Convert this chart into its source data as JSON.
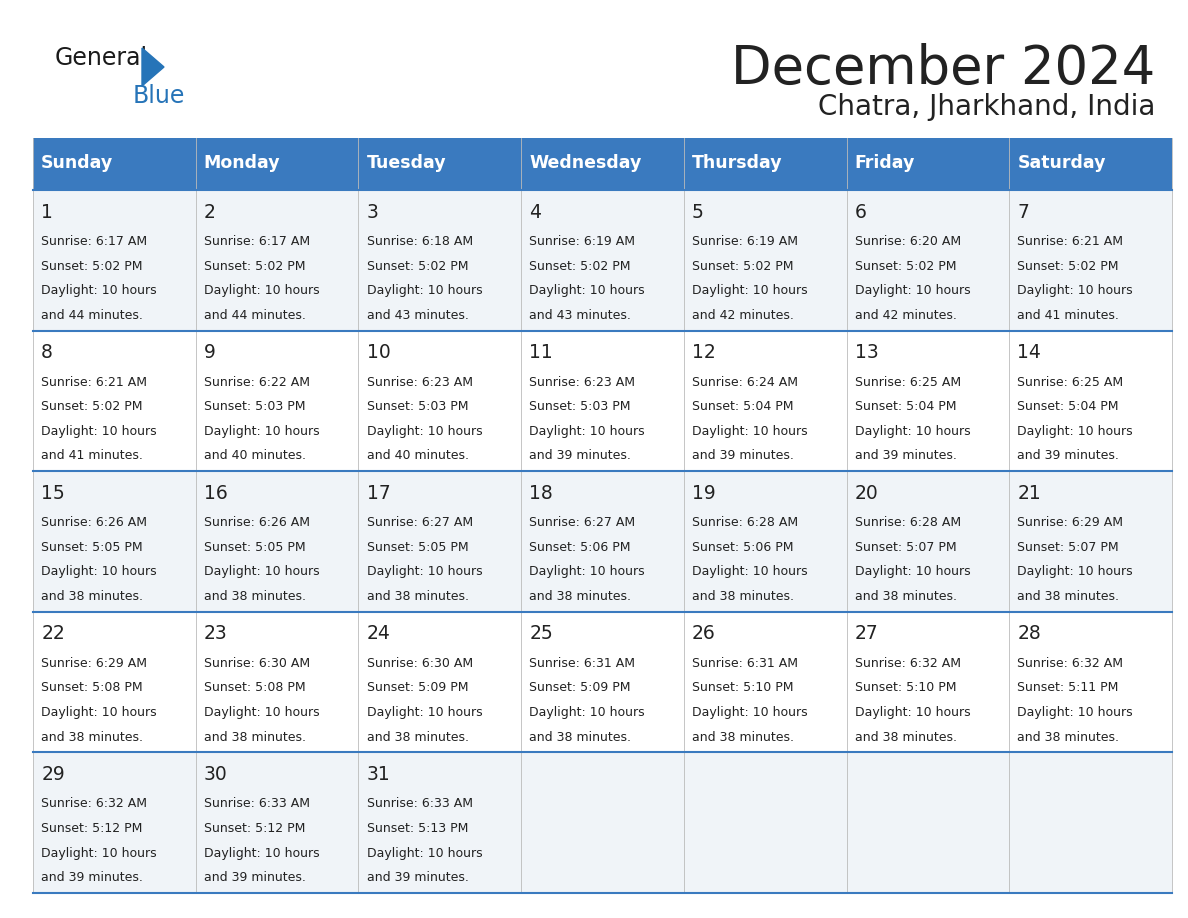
{
  "title": "December 2024",
  "subtitle": "Chatra, Jharkhand, India",
  "header_color": "#3a7abf",
  "header_text_color": "#ffffff",
  "row_colors": [
    "#f0f4f8",
    "#ffffff"
  ],
  "text_color": "#222222",
  "border_color": "#3a7abf",
  "days_of_week": [
    "Sunday",
    "Monday",
    "Tuesday",
    "Wednesday",
    "Thursday",
    "Friday",
    "Saturday"
  ],
  "calendar": [
    [
      {
        "day": 1,
        "sunrise": "6:17 AM",
        "sunset": "5:02 PM",
        "daylight_line1": "Daylight: 10 hours",
        "daylight_line2": "and 44 minutes."
      },
      {
        "day": 2,
        "sunrise": "6:17 AM",
        "sunset": "5:02 PM",
        "daylight_line1": "Daylight: 10 hours",
        "daylight_line2": "and 44 minutes."
      },
      {
        "day": 3,
        "sunrise": "6:18 AM",
        "sunset": "5:02 PM",
        "daylight_line1": "Daylight: 10 hours",
        "daylight_line2": "and 43 minutes."
      },
      {
        "day": 4,
        "sunrise": "6:19 AM",
        "sunset": "5:02 PM",
        "daylight_line1": "Daylight: 10 hours",
        "daylight_line2": "and 43 minutes."
      },
      {
        "day": 5,
        "sunrise": "6:19 AM",
        "sunset": "5:02 PM",
        "daylight_line1": "Daylight: 10 hours",
        "daylight_line2": "and 42 minutes."
      },
      {
        "day": 6,
        "sunrise": "6:20 AM",
        "sunset": "5:02 PM",
        "daylight_line1": "Daylight: 10 hours",
        "daylight_line2": "and 42 minutes."
      },
      {
        "day": 7,
        "sunrise": "6:21 AM",
        "sunset": "5:02 PM",
        "daylight_line1": "Daylight: 10 hours",
        "daylight_line2": "and 41 minutes."
      }
    ],
    [
      {
        "day": 8,
        "sunrise": "6:21 AM",
        "sunset": "5:02 PM",
        "daylight_line1": "Daylight: 10 hours",
        "daylight_line2": "and 41 minutes."
      },
      {
        "day": 9,
        "sunrise": "6:22 AM",
        "sunset": "5:03 PM",
        "daylight_line1": "Daylight: 10 hours",
        "daylight_line2": "and 40 minutes."
      },
      {
        "day": 10,
        "sunrise": "6:23 AM",
        "sunset": "5:03 PM",
        "daylight_line1": "Daylight: 10 hours",
        "daylight_line2": "and 40 minutes."
      },
      {
        "day": 11,
        "sunrise": "6:23 AM",
        "sunset": "5:03 PM",
        "daylight_line1": "Daylight: 10 hours",
        "daylight_line2": "and 39 minutes."
      },
      {
        "day": 12,
        "sunrise": "6:24 AM",
        "sunset": "5:04 PM",
        "daylight_line1": "Daylight: 10 hours",
        "daylight_line2": "and 39 minutes."
      },
      {
        "day": 13,
        "sunrise": "6:25 AM",
        "sunset": "5:04 PM",
        "daylight_line1": "Daylight: 10 hours",
        "daylight_line2": "and 39 minutes."
      },
      {
        "day": 14,
        "sunrise": "6:25 AM",
        "sunset": "5:04 PM",
        "daylight_line1": "Daylight: 10 hours",
        "daylight_line2": "and 39 minutes."
      }
    ],
    [
      {
        "day": 15,
        "sunrise": "6:26 AM",
        "sunset": "5:05 PM",
        "daylight_line1": "Daylight: 10 hours",
        "daylight_line2": "and 38 minutes."
      },
      {
        "day": 16,
        "sunrise": "6:26 AM",
        "sunset": "5:05 PM",
        "daylight_line1": "Daylight: 10 hours",
        "daylight_line2": "and 38 minutes."
      },
      {
        "day": 17,
        "sunrise": "6:27 AM",
        "sunset": "5:05 PM",
        "daylight_line1": "Daylight: 10 hours",
        "daylight_line2": "and 38 minutes."
      },
      {
        "day": 18,
        "sunrise": "6:27 AM",
        "sunset": "5:06 PM",
        "daylight_line1": "Daylight: 10 hours",
        "daylight_line2": "and 38 minutes."
      },
      {
        "day": 19,
        "sunrise": "6:28 AM",
        "sunset": "5:06 PM",
        "daylight_line1": "Daylight: 10 hours",
        "daylight_line2": "and 38 minutes."
      },
      {
        "day": 20,
        "sunrise": "6:28 AM",
        "sunset": "5:07 PM",
        "daylight_line1": "Daylight: 10 hours",
        "daylight_line2": "and 38 minutes."
      },
      {
        "day": 21,
        "sunrise": "6:29 AM",
        "sunset": "5:07 PM",
        "daylight_line1": "Daylight: 10 hours",
        "daylight_line2": "and 38 minutes."
      }
    ],
    [
      {
        "day": 22,
        "sunrise": "6:29 AM",
        "sunset": "5:08 PM",
        "daylight_line1": "Daylight: 10 hours",
        "daylight_line2": "and 38 minutes."
      },
      {
        "day": 23,
        "sunrise": "6:30 AM",
        "sunset": "5:08 PM",
        "daylight_line1": "Daylight: 10 hours",
        "daylight_line2": "and 38 minutes."
      },
      {
        "day": 24,
        "sunrise": "6:30 AM",
        "sunset": "5:09 PM",
        "daylight_line1": "Daylight: 10 hours",
        "daylight_line2": "and 38 minutes."
      },
      {
        "day": 25,
        "sunrise": "6:31 AM",
        "sunset": "5:09 PM",
        "daylight_line1": "Daylight: 10 hours",
        "daylight_line2": "and 38 minutes."
      },
      {
        "day": 26,
        "sunrise": "6:31 AM",
        "sunset": "5:10 PM",
        "daylight_line1": "Daylight: 10 hours",
        "daylight_line2": "and 38 minutes."
      },
      {
        "day": 27,
        "sunrise": "6:32 AM",
        "sunset": "5:10 PM",
        "daylight_line1": "Daylight: 10 hours",
        "daylight_line2": "and 38 minutes."
      },
      {
        "day": 28,
        "sunrise": "6:32 AM",
        "sunset": "5:11 PM",
        "daylight_line1": "Daylight: 10 hours",
        "daylight_line2": "and 38 minutes."
      }
    ],
    [
      {
        "day": 29,
        "sunrise": "6:32 AM",
        "sunset": "5:12 PM",
        "daylight_line1": "Daylight: 10 hours",
        "daylight_line2": "and 39 minutes."
      },
      {
        "day": 30,
        "sunrise": "6:33 AM",
        "sunset": "5:12 PM",
        "daylight_line1": "Daylight: 10 hours",
        "daylight_line2": "and 39 minutes."
      },
      {
        "day": 31,
        "sunrise": "6:33 AM",
        "sunset": "5:13 PM",
        "daylight_line1": "Daylight: 10 hours",
        "daylight_line2": "and 39 minutes."
      },
      null,
      null,
      null,
      null
    ]
  ]
}
